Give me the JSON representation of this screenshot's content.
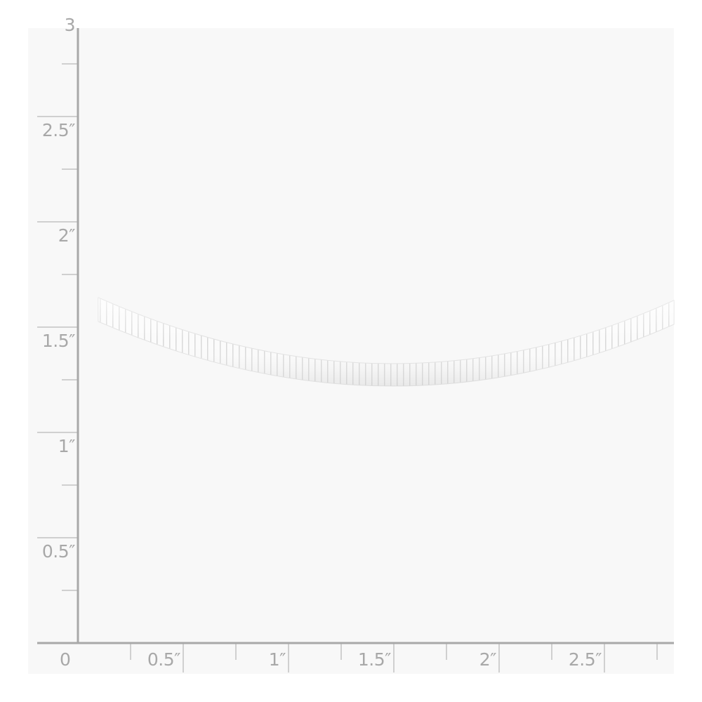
{
  "ruler": {
    "unit": "inch",
    "x_labels": [
      "0",
      "0.5″",
      "1″",
      "1.5″",
      "2″",
      "2.5″"
    ],
    "y_labels": [
      "3",
      "2.5″",
      "2″",
      "1.5″",
      "1″",
      "0.5″"
    ],
    "color": "#a8a8a8"
  },
  "product": {
    "type": "omega-chain",
    "color": "#f2f2f2",
    "background": "#f8f8f8"
  }
}
